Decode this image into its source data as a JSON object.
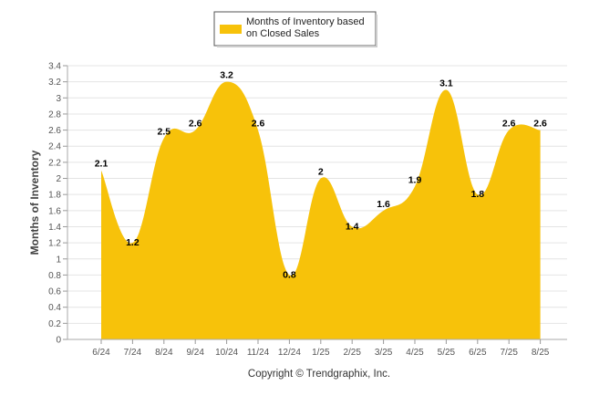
{
  "chart_data": {
    "type": "area",
    "title": "",
    "xlabel": "",
    "ylabel": "Months of Inventory",
    "categories": [
      "6/24",
      "7/24",
      "8/24",
      "9/24",
      "10/24",
      "11/24",
      "12/24",
      "1/25",
      "2/25",
      "3/25",
      "4/25",
      "5/25",
      "6/25",
      "7/25",
      "8/25"
    ],
    "series": [
      {
        "name": "Months of Inventory based on Closed Sales",
        "values": [
          2.1,
          1.2,
          2.5,
          2.6,
          3.2,
          2.6,
          0.8,
          2,
          1.4,
          1.6,
          1.9,
          3.1,
          1.8,
          2.6,
          2.6
        ],
        "color": "#f7c20a"
      }
    ],
    "data_labels": [
      "2.1",
      "1.2",
      "2.5",
      "2.6",
      "3.2",
      "2.6",
      "0.8",
      "2",
      "1.4",
      "1.6",
      "1.9",
      "3.1",
      "1.8",
      "2.6",
      "2.6"
    ],
    "y_ticks": [
      "0",
      "0.2",
      "0.4",
      "0.6",
      "0.8",
      "1",
      "1.2",
      "1.4",
      "1.6",
      "1.8",
      "2",
      "2.2",
      "2.4",
      "2.6",
      "2.8",
      "3",
      "3.2",
      "3.4"
    ],
    "ylim": [
      0,
      3.4
    ],
    "grid": true,
    "legend": {
      "placement": "top-center",
      "lines": [
        "Months of Inventory based",
        "on Closed Sales"
      ]
    },
    "footer": "Copyright © Trendgraphix, Inc."
  }
}
